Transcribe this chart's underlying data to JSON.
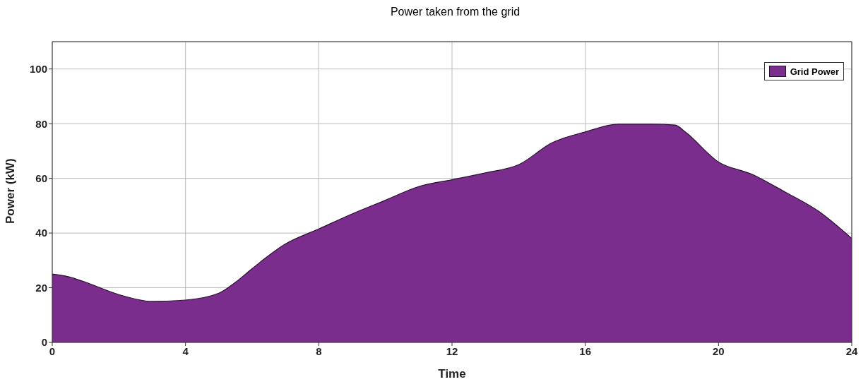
{
  "chart_data": {
    "type": "area",
    "title": "Power taken from the grid",
    "xlabel": "Time",
    "ylabel": "Power (kW)",
    "x": [
      0,
      0.5,
      1,
      2,
      3,
      4,
      5,
      5.5,
      6,
      7,
      8,
      9,
      10,
      11,
      12,
      13,
      14,
      15,
      16,
      17,
      18,
      18.7,
      19,
      20,
      21,
      22,
      23,
      24
    ],
    "series": [
      {
        "name": "Grid Power",
        "color": "#7b2d8e",
        "values": [
          25,
          24,
          22,
          17.5,
          15,
          15.5,
          18,
          22,
          27,
          36,
          41.5,
          47,
          52,
          57,
          59.5,
          62,
          65,
          73,
          77,
          79.8,
          79.8,
          79.5,
          77,
          66,
          61.5,
          55,
          48,
          38
        ]
      }
    ],
    "xlim": [
      0,
      24
    ],
    "xticks": [
      0,
      4,
      8,
      12,
      16,
      20,
      24
    ],
    "ylim": [
      0,
      110
    ],
    "yticks": [
      0,
      20,
      40,
      60,
      80,
      100
    ],
    "grid": true,
    "legend": "top right"
  }
}
